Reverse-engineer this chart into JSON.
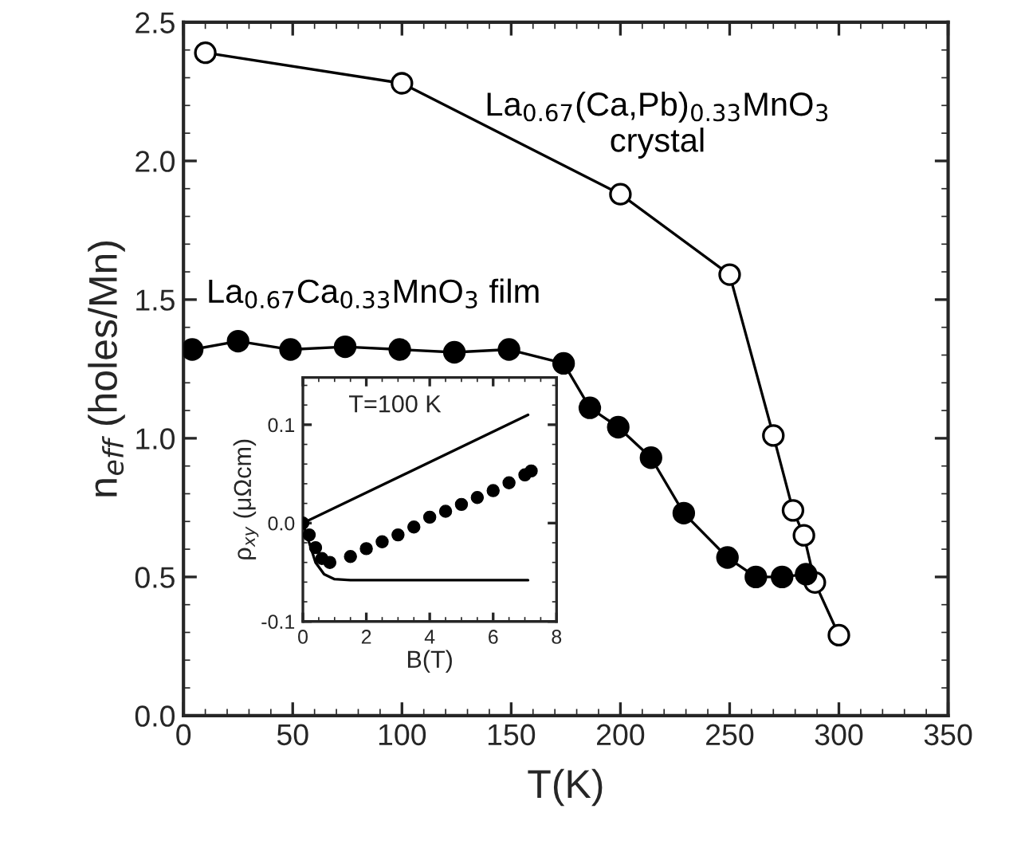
{
  "chart_data": [
    {
      "type": "line",
      "xlabel": "T(K)",
      "ylabel": "n$_{eff}$ (holes/Mn)",
      "xlim": [
        0,
        350
      ],
      "ylim": [
        0,
        2.5
      ],
      "xticks": [
        0,
        50,
        100,
        150,
        200,
        250,
        300,
        350
      ],
      "yticks": [
        {
          "value": 0,
          "label": "0.0"
        },
        {
          "value": 0.5,
          "label": "0.5"
        },
        {
          "value": 1,
          "label": "1.0"
        },
        {
          "value": 1.5,
          "label": "1.5"
        },
        {
          "value": 2,
          "label": "2.0"
        },
        {
          "value": 2.5,
          "label": "2.5"
        }
      ],
      "marker": "circle",
      "line_style": "solid",
      "grid": false,
      "legend": false,
      "series": [
        {
          "name": "La$_{0.67}$(Ca,Pb)$_{0.33}$MnO$_{3}$\ncrystal",
          "color": "#000000",
          "x": [
            10,
            100,
            200,
            250,
            270,
            279,
            284,
            289,
            300
          ],
          "values": [
            2.39,
            2.28,
            1.88,
            1.59,
            1.01,
            0.74,
            0.65,
            0.48,
            0.29
          ]
        },
        {
          "name": "La$_{0.67}$Ca$_{0.33}$MnO$_{3}$ film",
          "color": "#000000",
          "x": [
            4,
            25,
            49,
            74,
            99,
            124,
            149,
            174,
            186,
            199,
            214,
            229,
            249,
            262,
            274,
            285
          ],
          "values": [
            1.32,
            1.35,
            1.32,
            1.33,
            1.32,
            1.31,
            1.32,
            1.27,
            1.11,
            1.04,
            0.93,
            0.73,
            0.57,
            0.5,
            0.5,
            0.51
          ]
        }
      ]
    },
    {
      "type": "line",
      "xlabel": "B(T)",
      "ylabel": "ρ$_{xy}$ (μΩcm)",
      "annotations": [
        "T=100 K"
      ],
      "xlim": [
        0,
        8
      ],
      "ylim": [
        -0.1,
        0.148
      ],
      "xticks": [
        0,
        2,
        4,
        6,
        8
      ],
      "yticks": [
        {
          "value": -0.1,
          "label": "-0.1"
        },
        {
          "value": 0,
          "label": "0.0"
        },
        {
          "value": 0.1,
          "label": "0.1"
        }
      ],
      "grid": false,
      "legend": false,
      "series": [
        {
          "type": "line",
          "color": "#000000",
          "x": [
            0,
            7.1
          ],
          "values": [
            0,
            0.11
          ]
        },
        {
          "type": "line",
          "color": "#000000",
          "x": [
            0,
            0.2,
            0.4,
            0.67,
            1.0,
            1.5,
            3,
            5,
            7.1
          ],
          "values": [
            0,
            -0.02,
            -0.04,
            -0.052,
            -0.057,
            -0.058,
            -0.058,
            -0.058,
            -0.058
          ]
        },
        {
          "type": "scatter",
          "color": "#000000",
          "marker": "circle",
          "x": [
            0,
            0.2,
            0.4,
            0.6,
            0.85,
            1.5,
            2.0,
            2.5,
            3.0,
            3.5,
            4.0,
            4.5,
            5.0,
            5.5,
            6.0,
            6.5,
            7.0,
            7.2
          ],
          "values": [
            0,
            -0.012,
            -0.025,
            -0.036,
            -0.04,
            -0.034,
            -0.026,
            -0.019,
            -0.012,
            -0.004,
            0.006,
            0.012,
            0.019,
            0.026,
            0.033,
            0.041,
            0.049,
            0.053
          ]
        }
      ]
    }
  ]
}
